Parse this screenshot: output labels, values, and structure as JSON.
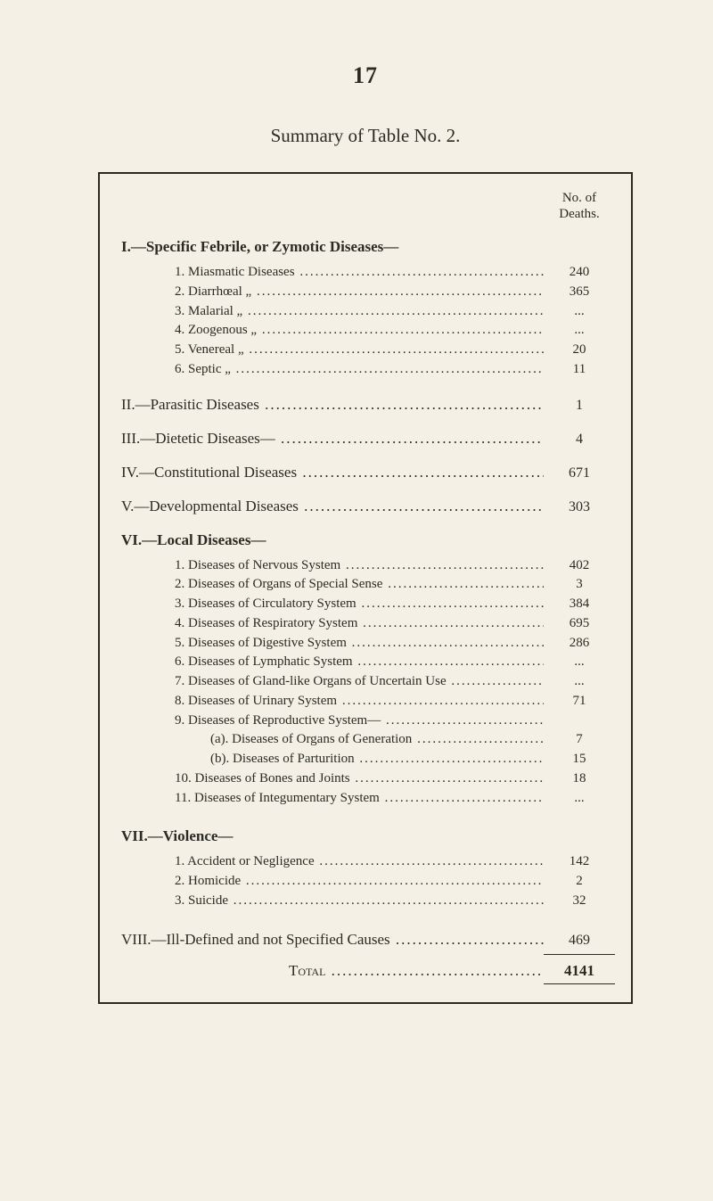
{
  "page_number": "17",
  "title": "Summary of Table No. 2.",
  "col_header": "No. of Deaths.",
  "sections": {
    "I": {
      "head": "I.—Specific Febrile, or Zymotic Diseases—",
      "items": [
        {
          "n": "1.",
          "label": "Miasmatic Diseases",
          "val": "240"
        },
        {
          "n": "2.",
          "label": "Diarrhœal        „",
          "val": "365"
        },
        {
          "n": "3.",
          "label": "Malarial           „",
          "val": "..."
        },
        {
          "n": "4.",
          "label": "Zoogenous        „",
          "val": "..."
        },
        {
          "n": "5.",
          "label": "Venereal           „",
          "val": "20"
        },
        {
          "n": "6.",
          "label": "Septic              „",
          "val": "11"
        }
      ]
    },
    "II": {
      "head": "II.—Parasitic Diseases",
      "val": "1"
    },
    "III": {
      "head": "III.—Dietetic Diseases—",
      "val": "4"
    },
    "IV": {
      "head": "IV.—Constitutional Diseases",
      "val": "671"
    },
    "V": {
      "head": "V.—Developmental Diseases",
      "val": "303"
    },
    "VI": {
      "head": "VI.—Local Diseases—",
      "items": [
        {
          "n": "1.",
          "label": "Diseases of Nervous System",
          "val": "402"
        },
        {
          "n": "2.",
          "label": "Diseases of Organs of Special Sense",
          "val": "3"
        },
        {
          "n": "3.",
          "label": "Diseases of Circulatory System",
          "val": "384"
        },
        {
          "n": "4.",
          "label": "Diseases of Respiratory System",
          "val": "695"
        },
        {
          "n": "5.",
          "label": "Diseases of Digestive System",
          "val": "286"
        },
        {
          "n": "6.",
          "label": "Diseases of Lymphatic System",
          "val": "..."
        },
        {
          "n": "7.",
          "label": "Diseases of Gland-like Organs of Uncertain Use",
          "val": "..."
        },
        {
          "n": "8.",
          "label": "Diseases of Urinary System",
          "val": "71"
        },
        {
          "n": "9.",
          "label": "Diseases of Reproductive System—",
          "val": ""
        }
      ],
      "subitems": [
        {
          "n": "(a).",
          "label": "Diseases of Organs of Generation",
          "val": "7"
        },
        {
          "n": "(b).",
          "label": "Diseases of Parturition",
          "val": "15"
        }
      ],
      "items2": [
        {
          "n": "10.",
          "label": "Diseases of Bones and Joints",
          "val": "18"
        },
        {
          "n": "11.",
          "label": "Diseases of Integumentary System",
          "val": "..."
        }
      ]
    },
    "VII": {
      "head": "VII.—Violence—",
      "items": [
        {
          "n": "1.",
          "label": "Accident or Negligence",
          "val": "142"
        },
        {
          "n": "2.",
          "label": "Homicide",
          "val": "2"
        },
        {
          "n": "3.",
          "label": "Suicide",
          "val": "32"
        }
      ]
    },
    "VIII": {
      "head": "VIII.—Ill-Defined and not Specified Causes",
      "val": "469"
    }
  },
  "total_label": "Total",
  "total_val": "4141"
}
